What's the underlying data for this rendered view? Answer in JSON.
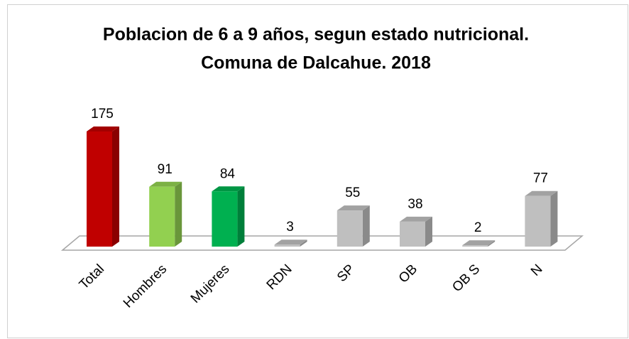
{
  "chart_data": {
    "type": "bar3d",
    "title": [
      "Poblacion de 6 a 9 años, segun estado nutricional.",
      "Comuna de Dalcahue. 2018"
    ],
    "categories": [
      "Total",
      "Hombres",
      "Mujeres",
      "RDN",
      "SP",
      "OB",
      "OB S",
      "N"
    ],
    "values": [
      175,
      91,
      84,
      3,
      55,
      38,
      2,
      77
    ],
    "colors": [
      "#c00000",
      "#92d050",
      "#00b050",
      "#bfbfbf",
      "#bfbfbf",
      "#bfbfbf",
      "#bfbfbf",
      "#bfbfbf"
    ]
  }
}
